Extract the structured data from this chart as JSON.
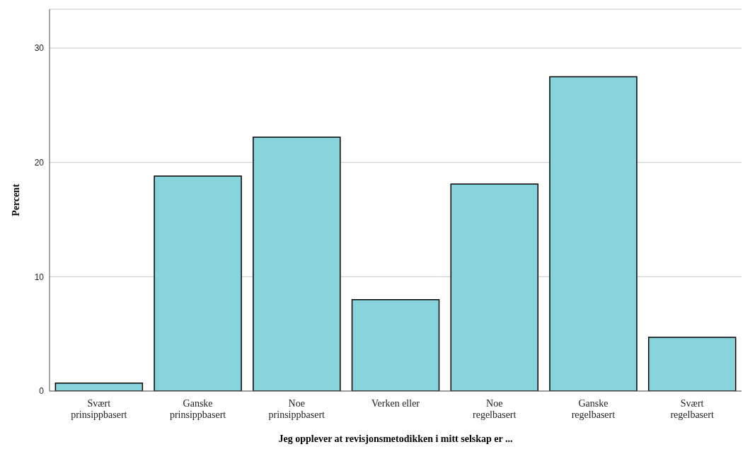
{
  "chart_data": {
    "type": "bar",
    "xlabel": "Jeg opplever at revisjonsmetodikken i mitt selskap er ...",
    "ylabel": "Percent",
    "categories": [
      "Svært\nprinsippbasert",
      "Ganske\nprinsippbasert",
      "Noe\nprinsippbasert",
      "Verken eller",
      "Noe\nregelbasert",
      "Ganske\nregelbasert",
      "Svært\nregelbasert"
    ],
    "values": [
      0.7,
      18.8,
      22.2,
      8.0,
      18.1,
      27.5,
      4.7
    ],
    "color": "#86d3dc",
    "ylim": [
      0,
      33.4
    ],
    "yticks": [
      0,
      10,
      20,
      30
    ],
    "grid": "y"
  }
}
